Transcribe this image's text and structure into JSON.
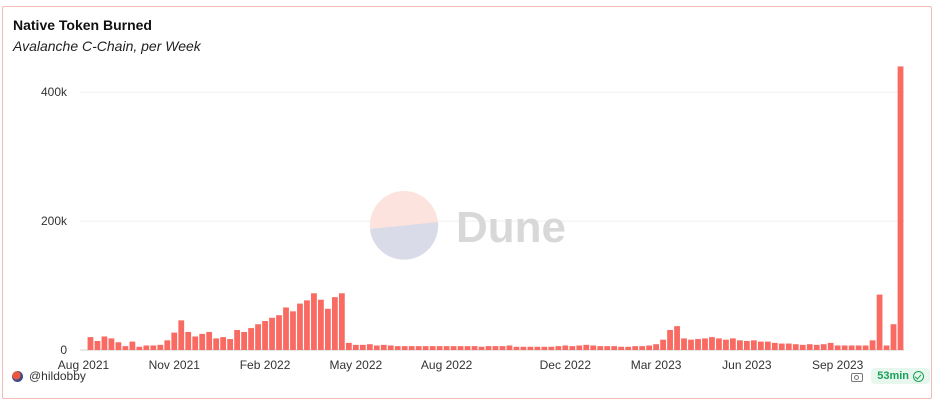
{
  "chart_data": {
    "type": "bar",
    "title": "Native Token Burned",
    "subtitle": "Avalanche C-Chain, per Week",
    "xlabel": "",
    "ylabel": "",
    "ylim": [
      0,
      450000
    ],
    "yticks": [
      0,
      200000,
      400000
    ],
    "ytick_labels": [
      "0",
      "200k",
      "400k"
    ],
    "x_tick_labels": [
      {
        "label": "Aug 2021",
        "week_index": 0
      },
      {
        "label": "Nov 2021",
        "week_index": 13
      },
      {
        "label": "Feb 2022",
        "week_index": 26
      },
      {
        "label": "May 2022",
        "week_index": 39
      },
      {
        "label": "Aug 2022",
        "week_index": 52
      },
      {
        "label": "Dec 2022",
        "week_index": 69
      },
      {
        "label": "Mar 2023",
        "week_index": 82
      },
      {
        "label": "Jun 2023",
        "week_index": 95
      },
      {
        "label": "Sep 2023",
        "week_index": 108
      }
    ],
    "grid": true,
    "bar_color": "#f86a62",
    "series": [
      {
        "values": [
          0,
          20000,
          14000,
          21000,
          18000,
          12000,
          6000,
          13000,
          5000,
          7000,
          7000,
          8000,
          15000,
          27000,
          46000,
          28000,
          21000,
          25000,
          28000,
          18000,
          20000,
          17000,
          31000,
          28000,
          34000,
          40000,
          45000,
          50000,
          54000,
          66000,
          60000,
          72000,
          77000,
          88000,
          78000,
          64000,
          82000,
          88000,
          11000,
          8000,
          8000,
          9000,
          7000,
          8000,
          7000,
          6000,
          6000,
          6000,
          6000,
          6000,
          6000,
          6000,
          6000,
          6000,
          6000,
          6000,
          6000,
          5000,
          6000,
          6000,
          6000,
          7000,
          5000,
          5000,
          5000,
          5000,
          5000,
          5000,
          6000,
          7000,
          6000,
          7000,
          8000,
          7000,
          6000,
          6000,
          6000,
          5000,
          5000,
          6000,
          6000,
          7000,
          9000,
          16000,
          31000,
          37000,
          18000,
          16000,
          17000,
          18000,
          20000,
          18000,
          16000,
          18000,
          15000,
          14000,
          15000,
          13000,
          13000,
          11000,
          10000,
          10000,
          9000,
          8000,
          9000,
          8000,
          9000,
          11000,
          7000,
          7000,
          7000,
          7000,
          7000,
          15000,
          86000,
          7000,
          40000,
          440000
        ]
      }
    ]
  },
  "watermark": {
    "text": "Dune"
  },
  "footer": {
    "author": "@hildobby",
    "refresh_label": "53min"
  }
}
